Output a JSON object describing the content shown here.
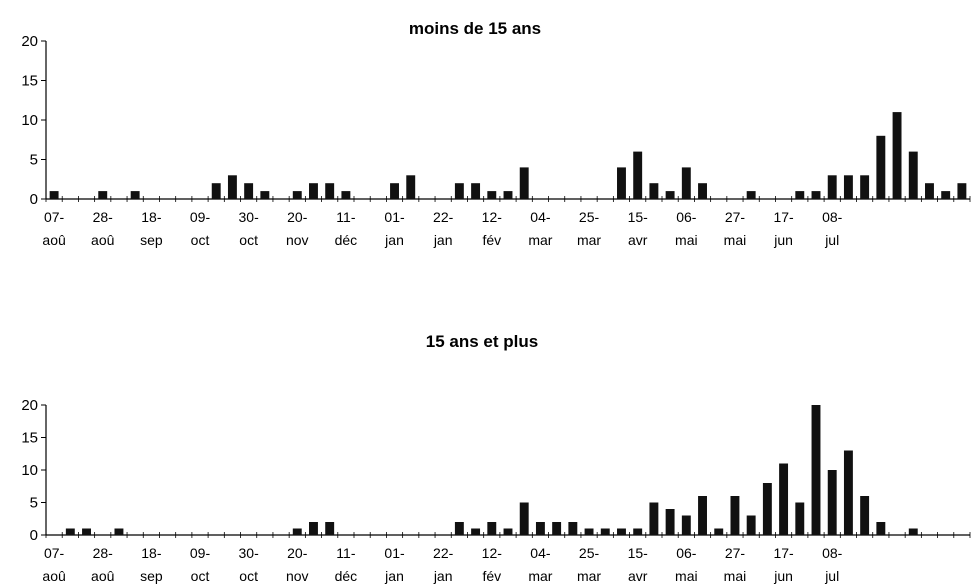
{
  "chart_data": [
    {
      "type": "bar",
      "title": "moins de 15 ans",
      "xlabel": "",
      "ylabel": "",
      "ylim": [
        0,
        20
      ],
      "yticks": [
        "0",
        "5",
        "10",
        "15",
        "20"
      ],
      "grid": false,
      "category_labels": [
        [
          "07-",
          "aoû"
        ],
        [
          "28-",
          "aoû"
        ],
        [
          "18-",
          "sep"
        ],
        [
          "09-",
          "oct"
        ],
        [
          "30-",
          "oct"
        ],
        [
          "20-",
          "nov"
        ],
        [
          "11-",
          "déc"
        ],
        [
          "01-",
          "jan"
        ],
        [
          "22-",
          "jan"
        ],
        [
          "12-",
          "fév"
        ],
        [
          "04-",
          "mar"
        ],
        [
          "25-",
          "mar"
        ],
        [
          "15-",
          "avr"
        ],
        [
          "06-",
          "mai"
        ],
        [
          "27-",
          "mai"
        ],
        [
          "17-",
          "jun"
        ],
        [
          "08-",
          "jul"
        ]
      ],
      "weeks": 57,
      "values": [
        1,
        0,
        0,
        1,
        0,
        1,
        0,
        0,
        0,
        0,
        2,
        3,
        2,
        1,
        0,
        1,
        2,
        2,
        1,
        0,
        0,
        2,
        3,
        0,
        0,
        2,
        2,
        1,
        1,
        4,
        0,
        0,
        0,
        0,
        0,
        4,
        6,
        2,
        1,
        4,
        2,
        0,
        0,
        1,
        0,
        0,
        1,
        1,
        3,
        3,
        3,
        8,
        11,
        6,
        2,
        1,
        2
      ]
    },
    {
      "type": "bar",
      "title": "15 ans et plus",
      "xlabel": "",
      "ylabel": "",
      "ylim": [
        0,
        20
      ],
      "yticks": [
        "0",
        "5",
        "10",
        "15",
        "20"
      ],
      "grid": false,
      "category_labels": [
        [
          "07-",
          "aoû"
        ],
        [
          "28-",
          "aoû"
        ],
        [
          "18-",
          "sep"
        ],
        [
          "09-",
          "oct"
        ],
        [
          "30-",
          "oct"
        ],
        [
          "20-",
          "nov"
        ],
        [
          "11-",
          "déc"
        ],
        [
          "01-",
          "jan"
        ],
        [
          "22-",
          "jan"
        ],
        [
          "12-",
          "fév"
        ],
        [
          "04-",
          "mar"
        ],
        [
          "25-",
          "mar"
        ],
        [
          "15-",
          "avr"
        ],
        [
          "06-",
          "mai"
        ],
        [
          "27-",
          "mai"
        ],
        [
          "17-",
          "jun"
        ],
        [
          "08-",
          "jul"
        ]
      ],
      "weeks": 57,
      "values": [
        0,
        1,
        1,
        0,
        1,
        0,
        0,
        0,
        0,
        0,
        0,
        0,
        0,
        0,
        0,
        1,
        2,
        2,
        0,
        0,
        0,
        0,
        0,
        0,
        0,
        2,
        1,
        2,
        1,
        5,
        2,
        2,
        2,
        1,
        1,
        1,
        1,
        5,
        4,
        3,
        6,
        1,
        6,
        3,
        8,
        11,
        5,
        20,
        10,
        13,
        6,
        2,
        0,
        1,
        0,
        0,
        0
      ]
    }
  ]
}
